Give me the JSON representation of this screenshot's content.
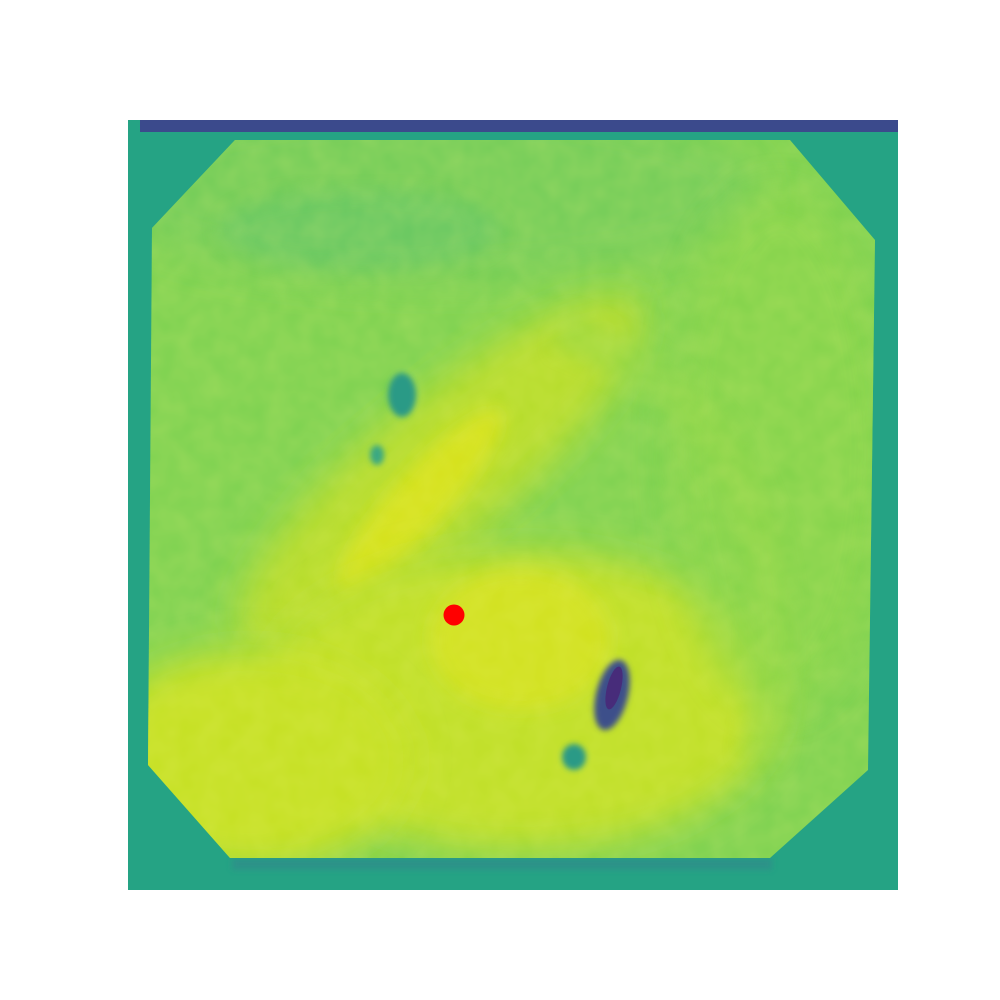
{
  "image": {
    "colormap": "viridis",
    "colors": {
      "page_background": "#ffffff",
      "frame_teal": "#25a384",
      "top_stripe_indigo": "#3b4a8c",
      "field_green": "#7cd150",
      "field_yellow_green": "#b5dc2b",
      "highlight_yellow": "#dde318",
      "dark_spot_purple": "#472c7a",
      "dark_spot_blue": "#3e4f8a",
      "spot_teal": "#2a9a86"
    }
  },
  "marker": {
    "shape": "dot",
    "color": "#ff0000"
  }
}
